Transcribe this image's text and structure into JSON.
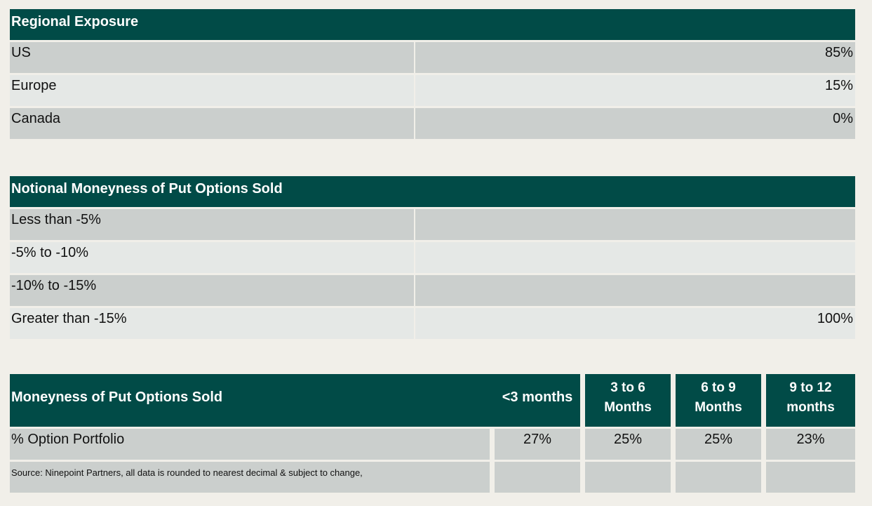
{
  "colors": {
    "header_teal": "#014b47",
    "row_dark_gray": "#cbcfcd",
    "row_light_gray": "#e5e8e6",
    "page_background": "#f1efe9"
  },
  "tables": {
    "regional_exposure": {
      "title": "Regional Exposure",
      "rows": [
        {
          "label": "US",
          "value": "85%"
        },
        {
          "label": "Europe",
          "value": "15%"
        },
        {
          "label": "Canada",
          "value": "0%"
        }
      ]
    },
    "notional_moneyness": {
      "title": "Notional Moneyness of Put Options Sold",
      "rows": [
        {
          "label": "Less than -5%",
          "value": ""
        },
        {
          "label": "-5% to -10%",
          "value": ""
        },
        {
          "label": "-10% to -15%",
          "value": ""
        },
        {
          "label": "Greater than -15%",
          "value": "100%"
        }
      ]
    },
    "moneyness_by_term": {
      "title": "Moneyness of Put Options Sold",
      "columns": [
        "<3 months",
        "3 to 6 Months",
        "6 to 9 Months",
        "9 to 12 months"
      ],
      "rows": [
        {
          "label": "% Option Portfolio",
          "values": [
            "27%",
            "25%",
            "25%",
            "23%"
          ]
        }
      ],
      "source_note": "Source: Ninepoint Partners, all data is rounded to nearest decimal & subject to change,"
    }
  }
}
